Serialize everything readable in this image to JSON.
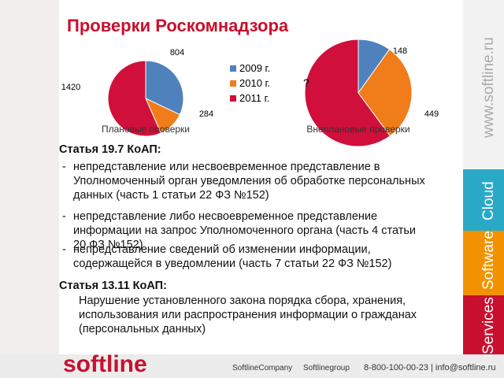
{
  "header": {
    "title": "Проверки Роскомнадзора"
  },
  "chart_data": [
    {
      "type": "pie",
      "categories": [
        "2009 г.",
        "2010 г.",
        "2011 г."
      ],
      "values": [
        804,
        284,
        1420
      ],
      "colors": [
        "#4f81bd",
        "#f07c1a",
        "#d0103a"
      ],
      "caption": "Плановые проверки",
      "legend": "right"
    },
    {
      "type": "pie",
      "values": [
        148,
        449,
        900
      ],
      "value_labels": [
        "148",
        "449",
        null
      ],
      "colors": [
        "#4f81bd",
        "#f07c1a",
        "#d0103a"
      ],
      "caption": "Внеплановые проверки",
      "annotation": "?"
    }
  ],
  "body": {
    "sections": [
      {
        "heading": "Статья 19.7 КоАП:",
        "items": [
          "непредставление или несвоевременное представление в Уполномоченный орган уведомления об обработке персональных данных (часть 1 статьи 22 ФЗ №152)",
          "непредставление либо несвоевременное представление информации на запрос Уполномоченного органа (часть 4 статьи 20 ФЗ №152)",
          "непредставление сведений об изменении информации, содержащейся в уведомлении (часть 7 статьи 22 ФЗ №152)"
        ]
      },
      {
        "heading": "Статья 13.11 КоАП:",
        "text": "Нарушение установленного закона порядка сбора, хранения, использования или распространения информации о гражданах (персональных данных)"
      }
    ]
  },
  "sidebar": {
    "url": "www.softline.ru",
    "tabs": [
      "Cloud",
      "Software",
      "Services"
    ]
  },
  "footer": {
    "logo": "softline",
    "social": [
      "SoftlineCompany",
      "Softlinegroup"
    ],
    "contact": "8-800-100-00-23 | info@softline.ru"
  }
}
